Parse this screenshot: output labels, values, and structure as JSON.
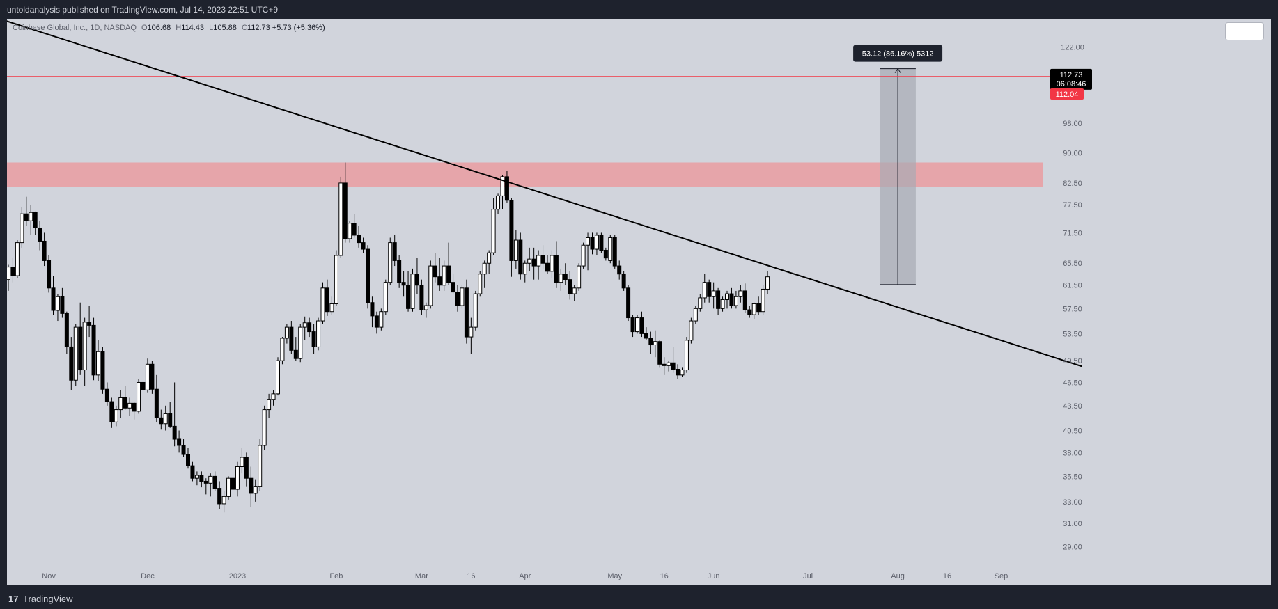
{
  "header": {
    "publisher_line": "untoldanalysis published on TradingView.com, Jul 14, 2023 22:51 UTC+9"
  },
  "legend": {
    "symbol": "Coinbase Global, Inc., 1D, NASDAQ",
    "open_label": "O",
    "open": "106.68",
    "high_label": "H",
    "high": "114.43",
    "low_label": "L",
    "low": "105.88",
    "close_label": "C",
    "close": "112.73",
    "change": "+5.73 (+5.36%)"
  },
  "footer": {
    "brand": "TradingView",
    "logo_glyph": "17"
  },
  "colors": {
    "background": "#d1d4dc",
    "frame": "#1e222d",
    "candle_up": "#ffffff",
    "candle_down": "#000000",
    "resistance_line": "#f23645",
    "zone": "#e8a0a4",
    "trendline": "#000000",
    "measure_box": "#a8abb3"
  },
  "chart_data": {
    "type": "candlestick",
    "price_scale": "log",
    "ylim": [
      27.5,
      132
    ],
    "y_ticks": [
      "122.00",
      "98.00",
      "90.00",
      "82.50",
      "77.50",
      "71.50",
      "65.50",
      "61.50",
      "57.50",
      "53.50",
      "49.50",
      "46.50",
      "43.50",
      "40.50",
      "38.00",
      "35.50",
      "33.00",
      "31.00",
      "29.00"
    ],
    "x_ticks": [
      {
        "label": "Nov",
        "index": 9
      },
      {
        "label": "Dec",
        "index": 31
      },
      {
        "label": "2023",
        "index": 51
      },
      {
        "label": "Feb",
        "index": 73
      },
      {
        "label": "Mar",
        "index": 92
      },
      {
        "label": "16",
        "index": 103
      },
      {
        "label": "Apr",
        "index": 115
      },
      {
        "label": "May",
        "index": 135
      },
      {
        "label": "16",
        "index": 146
      },
      {
        "label": "Jun",
        "index": 157
      },
      {
        "label": "Jul",
        "index": 178
      },
      {
        "label": "Aug",
        "index": 198
      },
      {
        "label": "16",
        "index": 209
      },
      {
        "label": "Sep",
        "index": 221
      }
    ],
    "x_range": [
      0,
      240
    ],
    "last_price": "112.73",
    "countdown": "06:08:46",
    "resistance_price": "112.04",
    "resistance_value": 112.04,
    "zone": {
      "low": 81.5,
      "high": 87.5
    },
    "trendline": {
      "start": {
        "index": -1.5,
        "price": 132
      },
      "end": {
        "index": 239,
        "price": 48.7
      }
    },
    "measure": {
      "start_index": 194,
      "end_index": 202,
      "low": 61.6,
      "high": 114.6,
      "label": "53.12 (86.16%) 5312"
    },
    "candles": [
      [
        62.5,
        65.2,
        60.5,
        64.8
      ],
      [
        64.8,
        66.5,
        62,
        63.2
      ],
      [
        63.2,
        70,
        62.8,
        69.5
      ],
      [
        69.5,
        77,
        68.5,
        75.5
      ],
      [
        75.5,
        79.3,
        73,
        74
      ],
      [
        74,
        77.5,
        71,
        75.8
      ],
      [
        75.8,
        76,
        71,
        72.5
      ],
      [
        72.5,
        74,
        68,
        69.8
      ],
      [
        69.8,
        71.5,
        65,
        66
      ],
      [
        66,
        67,
        60.2,
        61
      ],
      [
        61,
        63.2,
        56.5,
        57.2
      ],
      [
        57.2,
        60,
        55.5,
        59.5
      ],
      [
        59.5,
        61,
        56,
        56.7
      ],
      [
        56.7,
        57,
        50.5,
        51.5
      ],
      [
        51.5,
        53,
        45.5,
        46.8
      ],
      [
        46.8,
        55,
        46,
        54.5
      ],
      [
        54.5,
        58.5,
        47.5,
        48.2
      ],
      [
        48.2,
        56,
        46,
        55.3
      ],
      [
        55.3,
        58,
        53,
        54.8
      ],
      [
        54.8,
        56,
        46.8,
        47.5
      ],
      [
        47.5,
        52.5,
        46.7,
        50.8
      ],
      [
        50.8,
        51.5,
        45,
        45.6
      ],
      [
        45.6,
        46.5,
        43.5,
        44
      ],
      [
        44,
        44.5,
        40.8,
        41.5
      ],
      [
        41.5,
        43.5,
        41,
        43
      ],
      [
        43,
        45.5,
        42,
        44.5
      ],
      [
        44.5,
        46,
        43,
        43.2
      ],
      [
        43.2,
        44.5,
        42.2,
        43.8
      ],
      [
        43.8,
        44,
        41.8,
        42.8
      ],
      [
        42.8,
        47,
        42.5,
        46.5
      ],
      [
        46.5,
        47.5,
        44.5,
        45.5
      ],
      [
        45.5,
        49.8,
        45.2,
        49
      ],
      [
        49,
        49.5,
        45,
        45.6
      ],
      [
        45.6,
        47.5,
        41.5,
        42
      ],
      [
        42,
        43,
        40.6,
        41.3
      ],
      [
        41.3,
        43.5,
        40.5,
        42.5
      ],
      [
        42.5,
        44,
        40.8,
        41
      ],
      [
        41,
        46.5,
        38.7,
        39.5
      ],
      [
        39.5,
        40.5,
        38,
        38.8
      ],
      [
        38.8,
        39.5,
        37.5,
        37.8
      ],
      [
        37.8,
        38.5,
        36.3,
        36.6
      ],
      [
        36.6,
        37,
        35,
        35.3
      ],
      [
        35.3,
        36,
        34.6,
        35.6
      ],
      [
        35.6,
        36,
        34.4,
        35
      ],
      [
        35,
        35.3,
        33.7,
        34.8
      ],
      [
        34.8,
        35.8,
        33.5,
        35.5
      ],
      [
        35.5,
        36,
        34,
        34.3
      ],
      [
        34.3,
        35,
        32.3,
        32.8
      ],
      [
        32.8,
        34,
        32,
        33.5
      ],
      [
        33.5,
        35.5,
        33.2,
        35.3
      ],
      [
        35.3,
        35.8,
        33.8,
        34.2
      ],
      [
        34.2,
        37,
        33.5,
        36.5
      ],
      [
        36.5,
        38.5,
        35.8,
        37.5
      ],
      [
        37.5,
        38,
        34.5,
        35.3
      ],
      [
        35.3,
        36.5,
        32.5,
        33.8
      ],
      [
        33.8,
        35.2,
        33,
        34.5
      ],
      [
        34.5,
        39.5,
        34,
        38.8
      ],
      [
        38.8,
        43.5,
        38.3,
        43
      ],
      [
        43,
        45,
        42,
        44.3
      ],
      [
        44.3,
        45.5,
        43.5,
        45
      ],
      [
        45,
        50,
        44.8,
        49.5
      ],
      [
        49.5,
        53,
        49,
        52.8
      ],
      [
        52.8,
        55,
        52,
        54.5
      ],
      [
        54.5,
        55.5,
        50.5,
        51
      ],
      [
        51,
        53,
        49.5,
        49.8
      ],
      [
        49.8,
        55,
        49.3,
        54.5
      ],
      [
        54.5,
        56.2,
        52.5,
        55.2
      ],
      [
        55.2,
        56,
        53,
        53.8
      ],
      [
        53.8,
        55,
        50.5,
        51.5
      ],
      [
        51.5,
        56,
        51,
        55.5
      ],
      [
        55.5,
        62,
        55,
        61
      ],
      [
        61,
        62.5,
        56.3,
        57
      ],
      [
        57,
        59.5,
        56.5,
        58.3
      ],
      [
        58.3,
        68,
        58,
        67
      ],
      [
        67,
        84,
        66.5,
        82.5
      ],
      [
        82.5,
        87.5,
        69.5,
        70.3
      ],
      [
        70.3,
        74,
        69.5,
        73.5
      ],
      [
        73.5,
        75.5,
        70.5,
        71
      ],
      [
        71,
        73,
        68.5,
        69.5
      ],
      [
        69.5,
        70.5,
        67.5,
        68.2
      ],
      [
        68.2,
        69,
        57.5,
        58.5
      ],
      [
        58.5,
        59.5,
        54.5,
        56.3
      ],
      [
        56.3,
        57,
        53.5,
        54.5
      ],
      [
        54.5,
        57.5,
        54,
        57
      ],
      [
        57,
        62.5,
        56.5,
        62
      ],
      [
        62,
        70.5,
        61.5,
        69.5
      ],
      [
        69.5,
        71,
        65,
        66
      ],
      [
        66,
        67,
        61,
        62
      ],
      [
        62,
        64,
        59.5,
        61.5
      ],
      [
        61.5,
        64,
        57,
        57.5
      ],
      [
        57.5,
        64.5,
        57,
        63.5
      ],
      [
        63.5,
        66.5,
        60,
        61.5
      ],
      [
        61.5,
        62.5,
        56.5,
        57.3
      ],
      [
        57.3,
        58.5,
        56,
        58
      ],
      [
        58,
        66,
        57.5,
        65
      ],
      [
        65,
        67.5,
        62,
        63
      ],
      [
        63,
        66.5,
        60.5,
        61.5
      ],
      [
        61.5,
        66,
        60.5,
        65
      ],
      [
        65,
        69.5,
        61.5,
        62
      ],
      [
        62,
        63.5,
        60,
        60.3
      ],
      [
        60.3,
        61.5,
        57,
        58
      ],
      [
        58,
        61.5,
        57.5,
        61
      ],
      [
        61,
        62.5,
        52,
        53
      ],
      [
        53,
        56,
        50.5,
        54.5
      ],
      [
        54.5,
        60.5,
        54,
        60
      ],
      [
        60,
        64,
        59.5,
        63.5
      ],
      [
        63.5,
        66,
        61,
        65.5
      ],
      [
        65.5,
        68,
        63.5,
        67.5
      ],
      [
        67.5,
        79,
        67,
        76.5
      ],
      [
        76.5,
        80,
        75.5,
        79.5
      ],
      [
        79.5,
        84.5,
        76.5,
        84
      ],
      [
        84,
        85.5,
        78,
        78.5
      ],
      [
        78.5,
        79,
        63,
        66
      ],
      [
        66,
        72,
        64.5,
        70
      ],
      [
        70,
        71.5,
        62.5,
        63.5
      ],
      [
        63.5,
        66,
        62,
        65.5
      ],
      [
        65.5,
        68.5,
        64,
        66.3
      ],
      [
        66.3,
        68.5,
        62.5,
        65
      ],
      [
        65,
        68,
        62.5,
        67
      ],
      [
        67,
        69,
        64.5,
        65.5
      ],
      [
        65.5,
        67,
        63.5,
        64
      ],
      [
        64,
        68,
        62.8,
        67
      ],
      [
        67,
        69.8,
        61,
        62
      ],
      [
        62,
        64.5,
        60.5,
        63.5
      ],
      [
        63.5,
        65.5,
        61.5,
        62.5
      ],
      [
        62.5,
        64,
        59,
        60
      ],
      [
        60,
        61.5,
        58.8,
        61
      ],
      [
        61,
        65.5,
        60.5,
        65
      ],
      [
        65,
        69.5,
        64.5,
        69
      ],
      [
        69,
        71.5,
        64.2,
        70.5
      ],
      [
        70.5,
        71.5,
        67.2,
        68.2
      ],
      [
        68.2,
        71.5,
        67,
        71
      ],
      [
        71,
        71.5,
        67.5,
        68
      ],
      [
        68,
        68.5,
        66,
        66.5
      ],
      [
        66,
        71,
        65.5,
        70.5
      ],
      [
        70.5,
        71,
        64.5,
        65
      ],
      [
        65,
        66,
        62.5,
        63.5
      ],
      [
        63.5,
        64,
        60.5,
        61
      ],
      [
        61,
        61.5,
        55.5,
        56
      ],
      [
        56,
        56.5,
        53,
        53.8
      ],
      [
        53.8,
        56.5,
        53.5,
        56
      ],
      [
        56,
        57,
        53,
        53.5
      ],
      [
        53.5,
        54.5,
        52.5,
        52.8
      ],
      [
        52.8,
        53.8,
        50.5,
        51.8
      ],
      [
        51.8,
        54,
        50,
        52.3
      ],
      [
        52.3,
        52.5,
        48.5,
        49
      ],
      [
        49,
        50,
        47.5,
        48.8
      ],
      [
        48.8,
        49.5,
        48,
        49.2
      ],
      [
        49.2,
        51.5,
        47.8,
        48.3
      ],
      [
        48.3,
        49,
        47,
        47.5
      ],
      [
        47.5,
        48.5,
        47.3,
        48.2
      ],
      [
        48.2,
        53,
        47.8,
        52.5
      ],
      [
        52.5,
        56,
        52,
        55.5
      ],
      [
        55.5,
        58,
        55,
        57.5
      ],
      [
        57.5,
        60,
        57,
        59.3
      ],
      [
        59.3,
        63.5,
        58.5,
        62
      ],
      [
        62,
        62.5,
        58.5,
        59.5
      ],
      [
        59.5,
        62,
        57.5,
        60.5
      ],
      [
        60.5,
        61,
        56.5,
        57.5
      ],
      [
        57.5,
        59.5,
        57,
        59
      ],
      [
        59,
        60.5,
        57.5,
        60
      ],
      [
        60,
        61,
        57.5,
        58
      ],
      [
        58,
        60.5,
        57.5,
        59.5
      ],
      [
        59.5,
        61.5,
        58.5,
        60.5
      ],
      [
        60.5,
        61.8,
        56.8,
        57.3
      ],
      [
        57.3,
        58,
        56,
        56.5
      ],
      [
        56.5,
        58.5,
        55.8,
        58.3
      ],
      [
        58.3,
        59.5,
        56.5,
        57
      ],
      [
        57,
        61.5,
        56.5,
        60.8
      ],
      [
        60.8,
        64,
        60,
        63
      ]
    ]
  }
}
